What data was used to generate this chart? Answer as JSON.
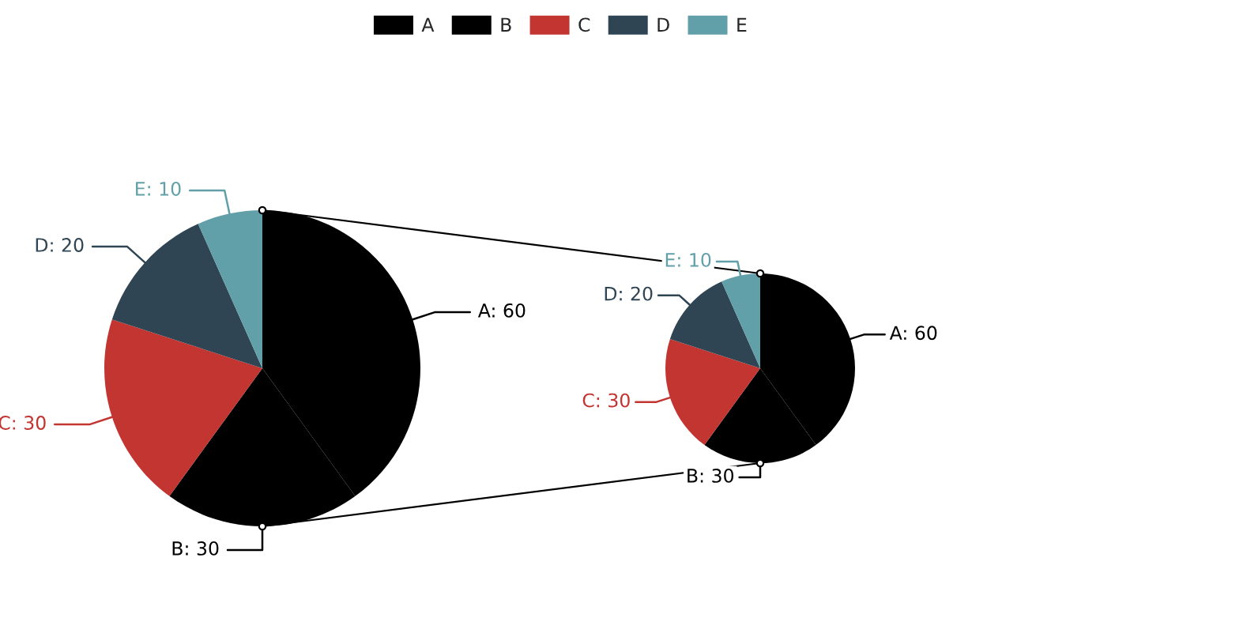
{
  "chart_data": [
    {
      "type": "pie",
      "categories": [
        "A",
        "B",
        "C",
        "D",
        "E"
      ],
      "values": [
        60,
        30,
        30,
        20,
        10
      ],
      "value_labels": [
        "A: 60",
        "B: 30",
        "C: 30",
        "D: 20",
        "E: 10"
      ],
      "colors": [
        "#000000",
        "#000000",
        "#c23531",
        "#2f4554",
        "#61a0a8"
      ],
      "legend": "top"
    },
    {
      "type": "pie",
      "categories": [
        null,
        null,
        null,
        null,
        null
      ],
      "values": [
        60,
        30,
        30,
        20,
        10
      ],
      "value_labels": [
        "A: 60",
        "B: 30",
        "C: 30",
        "D: 20",
        "E: 10"
      ],
      "colors": [
        "#000000",
        "#000000",
        "#c23531",
        "#2f4554",
        "#61a0a8"
      ]
    }
  ]
}
